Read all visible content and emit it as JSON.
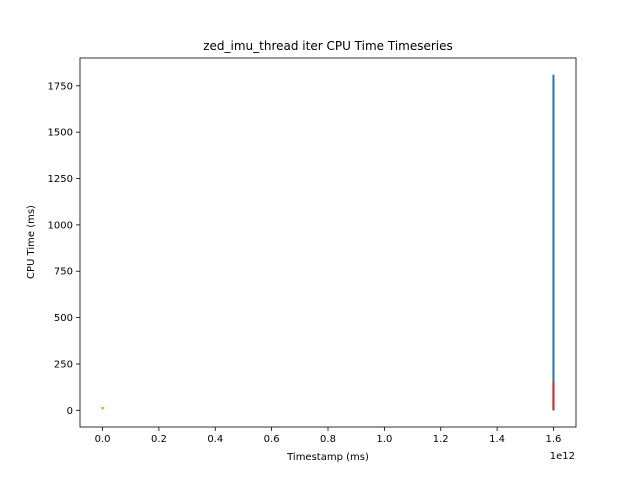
{
  "chart_data": {
    "type": "line",
    "title": "zed_imu_thread iter CPU Time Timeseries",
    "xlabel": "Timestamp (ms)",
    "ylabel": "CPU Time (ms)",
    "x_offset_label": "1e12",
    "xlim": [
      -0.08,
      1.68
    ],
    "ylim": [
      -90,
      1900
    ],
    "x_ticks": [
      0.0,
      0.2,
      0.4,
      0.6,
      0.8,
      1.0,
      1.2,
      1.4,
      1.6
    ],
    "x_tick_labels": [
      "0.0",
      "0.2",
      "0.4",
      "0.6",
      "0.8",
      "1.0",
      "1.2",
      "1.4",
      "1.6"
    ],
    "y_ticks": [
      0,
      250,
      500,
      750,
      1000,
      1250,
      1500,
      1750
    ],
    "y_tick_labels": [
      "0",
      "250",
      "500",
      "750",
      "1000",
      "1250",
      "1500",
      "1750"
    ],
    "grid": false,
    "legend": "none",
    "series": [
      {
        "color": "#1f77b4",
        "x": [
          1.6,
          1.6
        ],
        "y": [
          0,
          1810
        ]
      },
      {
        "color": "#ff7f0e",
        "x": [
          0.0,
          0.0
        ],
        "y": [
          5,
          18
        ]
      },
      {
        "color": "#2ca02c",
        "x": [
          1.6,
          1.6
        ],
        "y": [
          0,
          60
        ]
      },
      {
        "color": "#d62728",
        "x": [
          1.6,
          1.6
        ],
        "y": [
          0,
          155
        ]
      }
    ]
  }
}
